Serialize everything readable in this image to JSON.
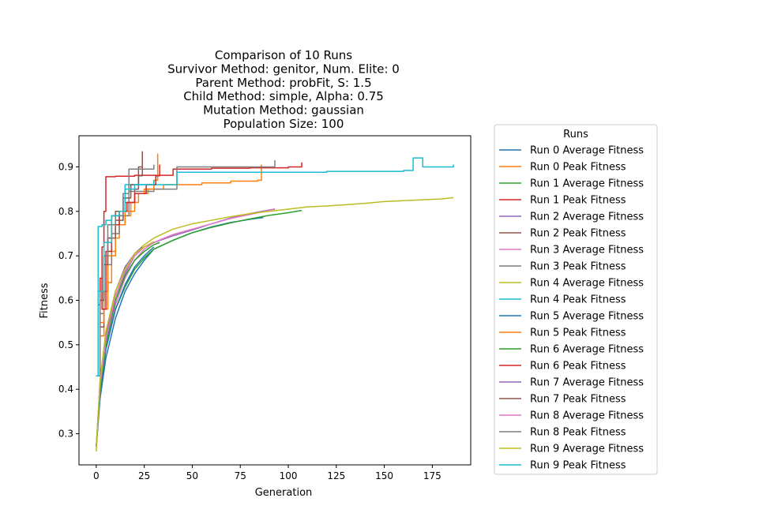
{
  "chart_data": {
    "type": "line",
    "title_lines": [
      "Comparison of 10 Runs",
      "Survivor Method: genitor, Num. Elite: 0",
      "Parent Method: probFit, S: 1.5",
      "Child Method: simple, Alpha: 0.75",
      "Mutation Method: gaussian",
      "Population Size: 100"
    ],
    "xlabel": "Generation",
    "ylabel": "Fitness",
    "xlim": [
      -9,
      195
    ],
    "ylim": [
      0.23,
      0.97
    ],
    "xticks": [
      0,
      25,
      50,
      75,
      100,
      125,
      150,
      175
    ],
    "yticks": [
      0.3,
      0.4,
      0.5,
      0.6,
      0.7,
      0.8,
      0.9
    ],
    "grid": false,
    "legend": {
      "title": "Runs",
      "placement": "outside-right"
    },
    "colors": [
      "#1f77b4",
      "#ff7f0e",
      "#2ca02c",
      "#d62728",
      "#9467bd",
      "#8c564b",
      "#e377c2",
      "#7f7f7f",
      "#bcbd22",
      "#17becf"
    ],
    "series": [
      {
        "name": "Run 0 Average Fitness",
        "kind": "avg",
        "color": "#1f77b4",
        "x": [
          0,
          2,
          5,
          10,
          15,
          20,
          25,
          30,
          40,
          50,
          60,
          70,
          80,
          87
        ],
        "y": [
          0.27,
          0.38,
          0.47,
          0.56,
          0.62,
          0.66,
          0.69,
          0.715,
          0.735,
          0.752,
          0.765,
          0.775,
          0.782,
          0.786
        ]
      },
      {
        "name": "Run 0 Peak Fitness",
        "kind": "peak",
        "color": "#ff7f0e",
        "x": [
          0,
          2,
          4,
          6,
          8,
          10,
          12,
          15,
          18,
          22,
          27,
          35,
          55,
          70,
          84,
          86
        ],
        "y": [
          0.43,
          0.52,
          0.58,
          0.64,
          0.71,
          0.74,
          0.77,
          0.79,
          0.82,
          0.84,
          0.85,
          0.86,
          0.864,
          0.868,
          0.87,
          0.905
        ]
      },
      {
        "name": "Run 1 Average Fitness",
        "kind": "avg",
        "color": "#2ca02c",
        "x": [
          0,
          2,
          5,
          10,
          15,
          20,
          25,
          30,
          40,
          50,
          60,
          70,
          80,
          90,
          100,
          107
        ],
        "y": [
          0.27,
          0.39,
          0.49,
          0.58,
          0.63,
          0.67,
          0.695,
          0.715,
          0.735,
          0.752,
          0.764,
          0.774,
          0.783,
          0.791,
          0.797,
          0.802
        ]
      },
      {
        "name": "Run 1 Peak Fitness",
        "kind": "peak",
        "color": "#d62728",
        "x": [
          0,
          2,
          3,
          4,
          5,
          10,
          20,
          40,
          60,
          80,
          100,
          105,
          107
        ],
        "y": [
          0.43,
          0.6,
          0.72,
          0.8,
          0.878,
          0.879,
          0.881,
          0.895,
          0.897,
          0.898,
          0.9,
          0.9,
          0.91
        ]
      },
      {
        "name": "Run 2 Average Fitness",
        "kind": "avg",
        "color": "#9467bd",
        "x": [
          0,
          2,
          5,
          10,
          15,
          20,
          25,
          30,
          40,
          50,
          60,
          70,
          80,
          90,
          93
        ],
        "y": [
          0.27,
          0.4,
          0.5,
          0.6,
          0.66,
          0.7,
          0.72,
          0.73,
          0.745,
          0.758,
          0.772,
          0.785,
          0.795,
          0.803,
          0.805
        ]
      },
      {
        "name": "Run 2 Peak Fitness",
        "kind": "peak",
        "color": "#8c564b",
        "x": [
          0,
          1,
          2,
          4,
          6,
          8,
          10,
          15,
          20,
          22,
          24
        ],
        "y": [
          0.43,
          0.59,
          0.54,
          0.7,
          0.74,
          0.79,
          0.8,
          0.82,
          0.85,
          0.9,
          0.935
        ]
      },
      {
        "name": "Run 3 Average Fitness",
        "kind": "avg",
        "color": "#e377c2",
        "x": [
          0,
          2,
          5,
          10,
          15,
          20,
          25,
          30,
          40,
          50,
          60,
          70,
          80,
          90,
          93
        ],
        "y": [
          0.27,
          0.4,
          0.5,
          0.59,
          0.65,
          0.69,
          0.715,
          0.73,
          0.748,
          0.76,
          0.772,
          0.784,
          0.793,
          0.802,
          0.806
        ]
      },
      {
        "name": "Run 3 Peak Fitness",
        "kind": "peak",
        "color": "#7f7f7f",
        "x": [
          0,
          2,
          4,
          6,
          8,
          12,
          17,
          30,
          42,
          60,
          91,
          93
        ],
        "y": [
          0.43,
          0.57,
          0.62,
          0.68,
          0.75,
          0.79,
          0.845,
          0.85,
          0.9,
          0.9,
          0.9,
          0.915
        ]
      },
      {
        "name": "Run 4 Average Fitness",
        "kind": "avg",
        "color": "#bcbd22",
        "x": [
          0,
          2,
          5,
          10,
          15,
          20,
          25,
          30,
          40,
          50,
          60,
          70,
          80,
          90,
          100,
          110,
          120,
          130,
          140,
          150,
          160,
          170,
          180,
          186
        ],
        "y": [
          0.26,
          0.42,
          0.53,
          0.62,
          0.67,
          0.705,
          0.725,
          0.74,
          0.76,
          0.772,
          0.78,
          0.788,
          0.795,
          0.8,
          0.805,
          0.81,
          0.812,
          0.815,
          0.818,
          0.822,
          0.824,
          0.826,
          0.828,
          0.831
        ]
      },
      {
        "name": "Run 4 Peak Fitness",
        "kind": "peak",
        "color": "#17becf",
        "x": [
          0,
          1,
          3,
          5,
          8,
          12,
          15,
          40,
          42,
          90,
          120,
          145,
          160,
          165,
          170,
          185,
          186
        ],
        "y": [
          0.43,
          0.766,
          0.77,
          0.78,
          0.79,
          0.8,
          0.86,
          0.86,
          0.888,
          0.888,
          0.89,
          0.89,
          0.892,
          0.92,
          0.9,
          0.9,
          0.905
        ]
      },
      {
        "name": "Run 5 Average Fitness",
        "kind": "avg",
        "color": "#1f77b4",
        "x": [
          0,
          2,
          5,
          10,
          15,
          20,
          25,
          30
        ],
        "y": [
          0.27,
          0.39,
          0.49,
          0.58,
          0.635,
          0.675,
          0.7,
          0.72
        ]
      },
      {
        "name": "Run 5 Peak Fitness",
        "kind": "peak",
        "color": "#ff7f0e",
        "x": [
          0,
          2,
          4,
          6,
          10,
          15,
          20,
          25,
          30,
          32
        ],
        "y": [
          0.43,
          0.55,
          0.62,
          0.7,
          0.77,
          0.8,
          0.84,
          0.85,
          0.87,
          0.93
        ]
      },
      {
        "name": "Run 6 Average Fitness",
        "kind": "avg",
        "color": "#2ca02c",
        "x": [
          0,
          2,
          5,
          10,
          15,
          20,
          25,
          30,
          33
        ],
        "y": [
          0.27,
          0.4,
          0.5,
          0.6,
          0.655,
          0.69,
          0.71,
          0.725,
          0.73
        ]
      },
      {
        "name": "Run 6 Peak Fitness",
        "kind": "peak",
        "color": "#d62728",
        "x": [
          0,
          2,
          3,
          5,
          8,
          12,
          16,
          20,
          26,
          31,
          33
        ],
        "y": [
          0.43,
          0.65,
          0.58,
          0.71,
          0.77,
          0.8,
          0.82,
          0.84,
          0.86,
          0.88,
          0.905
        ]
      },
      {
        "name": "Run 7 Average Fitness",
        "kind": "avg",
        "color": "#9467bd",
        "x": [
          0,
          2,
          5,
          10,
          15,
          20,
          24
        ],
        "y": [
          0.27,
          0.42,
          0.52,
          0.62,
          0.675,
          0.705,
          0.72
        ]
      },
      {
        "name": "Run 7 Peak Fitness",
        "kind": "peak",
        "color": "#8c564b",
        "x": [
          0,
          2,
          4,
          6,
          10,
          14,
          18,
          22,
          24
        ],
        "y": [
          0.43,
          0.6,
          0.68,
          0.74,
          0.78,
          0.83,
          0.86,
          0.88,
          0.935
        ]
      },
      {
        "name": "Run 8 Average Fitness",
        "kind": "avg",
        "color": "#e377c2",
        "x": [
          0,
          2,
          5,
          10,
          15,
          20,
          25,
          30
        ],
        "y": [
          0.27,
          0.41,
          0.51,
          0.61,
          0.665,
          0.7,
          0.72,
          0.732
        ]
      },
      {
        "name": "Run 8 Peak Fitness",
        "kind": "peak",
        "color": "#7f7f7f",
        "x": [
          0,
          2,
          4,
          6,
          10,
          14,
          17,
          30,
          30
        ],
        "y": [
          0.43,
          0.62,
          0.7,
          0.77,
          0.79,
          0.84,
          0.895,
          0.895,
          0.905
        ]
      },
      {
        "name": "Run 9 Average Fitness",
        "kind": "avg",
        "color": "#bcbd22",
        "x": [
          0,
          2,
          5,
          10,
          15,
          20,
          25,
          30
        ],
        "y": [
          0.27,
          0.42,
          0.53,
          0.62,
          0.67,
          0.705,
          0.72,
          0.732
        ]
      },
      {
        "name": "Run 9 Peak Fitness",
        "kind": "peak",
        "color": "#17becf",
        "x": [
          0,
          1,
          4,
          8,
          12,
          15,
          20,
          30
        ],
        "y": [
          0.43,
          0.62,
          0.73,
          0.79,
          0.8,
          0.85,
          0.86,
          0.87
        ]
      }
    ]
  }
}
